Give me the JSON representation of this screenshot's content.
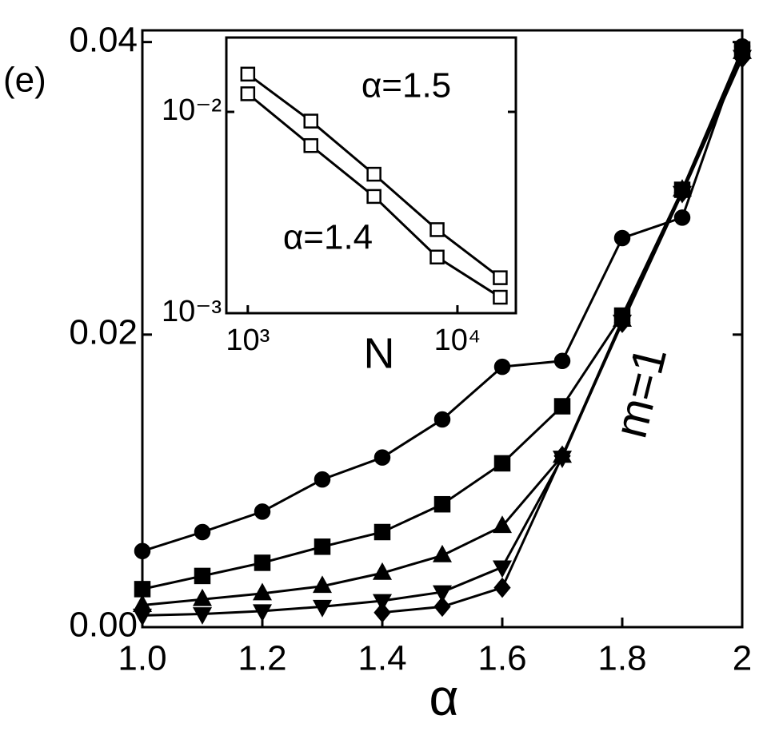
{
  "chart_data": [
    {
      "type": "line",
      "label": "(e)",
      "xlabel": "α",
      "annotation": "m=1",
      "x": [
        1.0,
        1.1,
        1.2,
        1.3,
        1.4,
        1.5,
        1.6,
        1.7,
        1.8,
        1.9,
        2.0
      ],
      "xlim": [
        1,
        2
      ],
      "ylim": [
        0,
        0.0408
      ],
      "xlog": false,
      "ylog": false,
      "xticks": [
        {
          "value": 1,
          "label": "1.0"
        },
        1.2,
        1.4,
        1.6,
        1.8,
        2
      ],
      "yticks": [
        {
          "value": 0,
          "label": "0.00"
        },
        0.02,
        0.04
      ],
      "series": [
        {
          "color": "#000000",
          "marker": "circle",
          "filled": true,
          "values": [
            0.0052,
            0.0065,
            0.0079,
            0.0101,
            0.0116,
            0.0142,
            0.0178,
            0.0182,
            0.0266,
            0.028,
            0.0397
          ]
        },
        {
          "color": "#000000",
          "marker": "square",
          "filled": true,
          "values": [
            0.0026,
            0.0035,
            0.0044,
            0.0055,
            0.0065,
            0.0084,
            0.0112,
            0.0151,
            0.0213,
            0.0299,
            0.0395
          ]
        },
        {
          "color": "#000000",
          "marker": "triangle-up",
          "filled": true,
          "values": [
            0.0015,
            0.0019,
            0.0023,
            0.0028,
            0.0037,
            0.0049,
            0.0069,
            0.0117,
            0.021,
            0.0299,
            0.0393
          ]
        },
        {
          "color": "#000000",
          "marker": "triangle-down",
          "filled": true,
          "values": [
            0.0008,
            0.0009,
            0.0011,
            0.0014,
            0.0018,
            0.0024,
            0.0041,
            0.0116,
            0.0209,
            0.0297,
            0.039
          ]
        },
        {
          "color": "#000000",
          "marker": "diamond",
          "filled": true,
          "values": [
            null,
            null,
            null,
            null,
            0.001,
            0.0014,
            0.0027,
            0.0117,
            0.0208,
            0.0297,
            0.0389
          ]
        }
      ]
    },
    {
      "type": "line",
      "xlabel": "N",
      "annotations": [
        "α=1.5",
        "α=1.4"
      ],
      "x": [
        1000,
        2000,
        4000,
        8000,
        16000
      ],
      "xlim": [
        790,
        19000
      ],
      "ylim": [
        0.001,
        0.0234
      ],
      "xlog": true,
      "ylog": true,
      "xticks": [
        {
          "value": 1000,
          "label": "10³"
        },
        {
          "value": 10000,
          "label": "10⁴"
        }
      ],
      "yticks": [
        {
          "value": 0.001,
          "label": "10⁻³"
        },
        {
          "value": 0.01,
          "label": "10⁻²"
        }
      ],
      "series": [
        {
          "color": "#000000",
          "marker": "square",
          "filled": false,
          "values": [
            0.0154,
            0.009,
            0.0049,
            0.0026,
            0.0015
          ]
        },
        {
          "color": "#000000",
          "marker": "square",
          "filled": false,
          "values": [
            0.0123,
            0.0068,
            0.0038,
            0.0019,
            0.0012
          ]
        }
      ]
    }
  ]
}
